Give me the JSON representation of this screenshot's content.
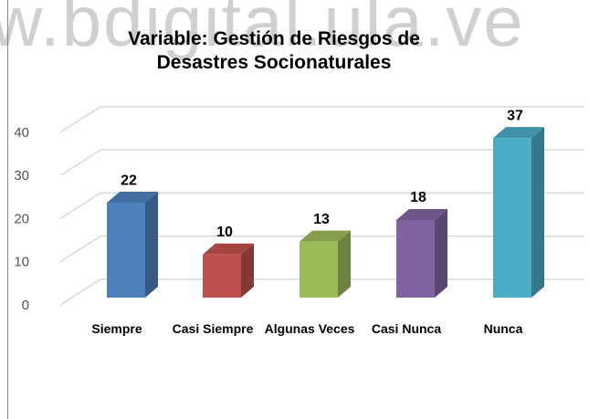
{
  "watermark": "w.bdigital.ula.ve",
  "chart_data": {
    "type": "bar",
    "title": "Variable:  Gestión de Riesgos de Desastres Socionaturales",
    "categories": [
      "Siempre",
      "Casi Siempre",
      "Algunas Veces",
      "Casi Nunca",
      "Nunca"
    ],
    "values": [
      22,
      10,
      13,
      18,
      37
    ],
    "colors": [
      "#4f81bd",
      "#c0504d",
      "#9bbb59",
      "#8064a2",
      "#4bacc6"
    ],
    "ylim": [
      0,
      40
    ],
    "yticks": [
      0,
      10,
      20,
      30,
      40
    ],
    "grid": true
  }
}
